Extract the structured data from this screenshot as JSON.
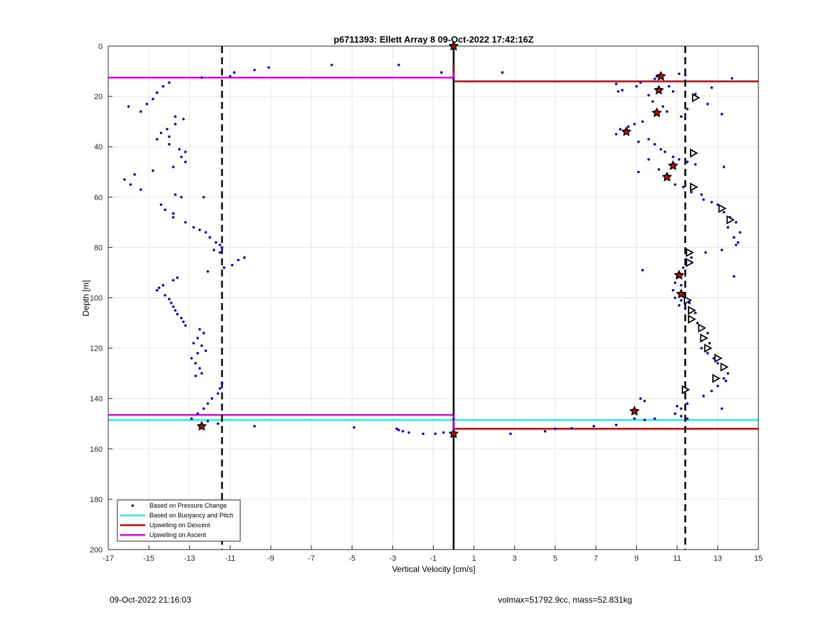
{
  "chart_data": {
    "type": "scatter",
    "title": "p6711393: Ellett Array 8 09-Oct-2022 17:42:16Z",
    "xlabel": "Vertical Velocity [cm/s]",
    "ylabel": "Depth [m]",
    "xlim": [
      -17,
      15
    ],
    "ylim": [
      0,
      200
    ],
    "y_reversed": true,
    "grid": true,
    "xticks": [
      -17,
      -15,
      -13,
      -11,
      -9,
      -7,
      -5,
      -3,
      -1,
      1,
      3,
      5,
      7,
      9,
      11,
      13,
      15
    ],
    "yticks": [
      0,
      20,
      40,
      60,
      80,
      100,
      120,
      140,
      160,
      180,
      200
    ],
    "legend_position": "bottom-left",
    "legend": [
      {
        "label": "Based on Pressure Change",
        "color": "#0000cc",
        "style": "marker"
      },
      {
        "label": "Based on Buoyancy and Pitch",
        "color": "#33e6e6",
        "style": "line"
      },
      {
        "label": "Upwelling on Descent",
        "color": "#cc0000",
        "style": "line"
      },
      {
        "label": "Upwelling on Ascent",
        "color": "#e600e6",
        "style": "line"
      }
    ],
    "vlines": [
      {
        "x": -11.4,
        "style": "dashed",
        "color": "#000000"
      },
      {
        "x": 11.4,
        "style": "dashed",
        "color": "#000000"
      },
      {
        "x": 0,
        "style": "solid",
        "color": "#000000",
        "y_range": [
          0,
          200
        ]
      }
    ],
    "hsegments": [
      {
        "series": "Upwelling on Ascent",
        "y": 12.5,
        "x_range": [
          -17,
          0
        ],
        "color": "#e600e6"
      },
      {
        "series": "Upwelling on Ascent",
        "y": 146.5,
        "x_range": [
          -17,
          0
        ],
        "color": "#e600e6"
      },
      {
        "series": "Upwelling on Descent",
        "y": 14,
        "x_range": [
          0,
          15
        ],
        "color": "#cc0000"
      },
      {
        "series": "Upwelling on Descent",
        "y": 152,
        "x_range": [
          0,
          15
        ],
        "color": "#cc0000"
      },
      {
        "series": "Based on Buoyancy and Pitch",
        "y": 148.5,
        "x_range": [
          -17,
          0
        ],
        "color": "#33e6e6"
      },
      {
        "series": "Based on Buoyancy and Pitch",
        "y": 148.5,
        "x_range": [
          0,
          15
        ],
        "color": "#33e6e6"
      }
    ],
    "series": [
      {
        "name": "Based on Pressure Change",
        "color": "#0000cc",
        "points": [
          [
            -14.0,
            14.5
          ],
          [
            -14.3,
            16.0
          ],
          [
            -14.6,
            18.5
          ],
          [
            -14.8,
            21
          ],
          [
            -15.1,
            23
          ],
          [
            -15.4,
            26
          ],
          [
            -16.0,
            24
          ],
          [
            -13.7,
            28
          ],
          [
            -13.3,
            29
          ],
          [
            -13.7,
            31
          ],
          [
            -14.1,
            33
          ],
          [
            -14.4,
            34.5
          ],
          [
            -14.0,
            36
          ],
          [
            -14.6,
            37
          ],
          [
            -14.0,
            39
          ],
          [
            -13.5,
            41
          ],
          [
            -13.2,
            42
          ],
          [
            -13.4,
            44
          ],
          [
            -13.2,
            46
          ],
          [
            -13.8,
            48
          ],
          [
            -14.8,
            49.5
          ],
          [
            -15.7,
            51
          ],
          [
            -16.2,
            53
          ],
          [
            -15.9,
            55
          ],
          [
            -15.4,
            57
          ],
          [
            -13.7,
            59
          ],
          [
            -13.4,
            60
          ],
          [
            -12.3,
            60
          ],
          [
            -14.4,
            63
          ],
          [
            -14.2,
            65
          ],
          [
            -13.8,
            66.5
          ],
          [
            -13.8,
            68
          ],
          [
            -13.2,
            70
          ],
          [
            -12.8,
            72
          ],
          [
            -12.5,
            73
          ],
          [
            -12.2,
            74
          ],
          [
            -12.0,
            76
          ],
          [
            -11.7,
            78
          ],
          [
            -11.5,
            79
          ],
          [
            -11.4,
            80
          ],
          [
            -11.8,
            81
          ],
          [
            -11.5,
            82
          ],
          [
            -10.3,
            84
          ],
          [
            -10.6,
            85
          ],
          [
            -10.9,
            87
          ],
          [
            -11.3,
            88
          ],
          [
            -12.1,
            89.5
          ],
          [
            -13.6,
            92
          ],
          [
            -13.8,
            93
          ],
          [
            -14.3,
            95
          ],
          [
            -14.5,
            96
          ],
          [
            -14.6,
            97
          ],
          [
            -14.2,
            99
          ],
          [
            -14.0,
            100.5
          ],
          [
            -13.9,
            102
          ],
          [
            -13.8,
            103.5
          ],
          [
            -13.7,
            105
          ],
          [
            -13.6,
            106.5
          ],
          [
            -13.4,
            108
          ],
          [
            -13.3,
            109.5
          ],
          [
            -13.2,
            111
          ],
          [
            -12.5,
            112.5
          ],
          [
            -12.3,
            114
          ],
          [
            -12.6,
            116
          ],
          [
            -12.8,
            118
          ],
          [
            -12.4,
            119
          ],
          [
            -12.2,
            121
          ],
          [
            -12.6,
            122
          ],
          [
            -12.9,
            124
          ],
          [
            -12.7,
            126
          ],
          [
            -12.5,
            128
          ],
          [
            -12.4,
            130
          ],
          [
            -12.7,
            131
          ],
          [
            -11.4,
            134
          ],
          [
            -11.5,
            136
          ],
          [
            -11.6,
            138
          ],
          [
            -11.9,
            140
          ],
          [
            -12.1,
            142
          ],
          [
            -12.3,
            144
          ],
          [
            -12.6,
            146
          ],
          [
            -12.9,
            148
          ],
          [
            -12.1,
            149
          ],
          [
            -11.6,
            150
          ],
          [
            -12.4,
            12.5
          ],
          [
            -11.0,
            12
          ],
          [
            -10.8,
            10.5
          ],
          [
            -9.8,
            9.5
          ],
          [
            -9.1,
            8.5
          ],
          [
            -6.0,
            7.5
          ],
          [
            -2.7,
            7.5
          ],
          [
            -0.6,
            10.5
          ],
          [
            2.4,
            10.5
          ],
          [
            -9.8,
            151
          ],
          [
            -4.9,
            151.5
          ],
          [
            -2.8,
            152
          ],
          [
            -2.7,
            152.5
          ],
          [
            -2.5,
            153
          ],
          [
            -2.2,
            153.5
          ],
          [
            -1.5,
            154
          ],
          [
            -0.9,
            154
          ],
          [
            -0.5,
            153.5
          ],
          [
            2.8,
            154
          ],
          [
            4.5,
            153
          ],
          [
            5.0,
            152
          ],
          [
            5.8,
            151.8
          ],
          [
            6.9,
            151
          ],
          [
            8.0,
            150.5
          ],
          [
            8.9,
            148
          ],
          [
            9.4,
            148.5
          ],
          [
            9.9,
            148
          ],
          [
            9.2,
            140
          ],
          [
            9.4,
            141
          ],
          [
            11.0,
            143
          ],
          [
            11.2,
            144
          ],
          [
            11.5,
            142
          ],
          [
            10.9,
            146
          ],
          [
            11.2,
            147
          ],
          [
            11.5,
            148
          ],
          [
            12.3,
            139
          ],
          [
            13.2,
            144
          ],
          [
            8.0,
            15
          ],
          [
            8.1,
            18
          ],
          [
            8.3,
            17.5
          ],
          [
            9.0,
            16
          ],
          [
            9.2,
            14.5
          ],
          [
            9.6,
            19.5
          ],
          [
            9.9,
            13
          ],
          [
            10.0,
            12
          ],
          [
            10.6,
            16
          ],
          [
            10.8,
            18
          ],
          [
            11.1,
            11
          ],
          [
            11.4,
            11.5
          ],
          [
            11.9,
            19
          ],
          [
            12.7,
            16.5
          ],
          [
            12.5,
            23
          ],
          [
            9.8,
            22
          ],
          [
            10.3,
            24
          ],
          [
            10.5,
            26
          ],
          [
            11.2,
            28
          ],
          [
            11.5,
            25
          ],
          [
            13.2,
            27
          ],
          [
            8.0,
            35
          ],
          [
            8.2,
            33
          ],
          [
            8.6,
            32
          ],
          [
            8.9,
            31
          ],
          [
            9.3,
            30
          ],
          [
            9.6,
            37
          ],
          [
            9.1,
            38
          ],
          [
            9.9,
            39
          ],
          [
            10.2,
            41
          ],
          [
            10.4,
            42
          ],
          [
            10.8,
            44
          ],
          [
            11.1,
            45
          ],
          [
            11.5,
            46
          ],
          [
            11.9,
            47
          ],
          [
            13.3,
            48
          ],
          [
            9.1,
            50
          ],
          [
            9.6,
            45
          ],
          [
            10.1,
            49
          ],
          [
            10.5,
            51
          ],
          [
            10.6,
            53
          ],
          [
            10.9,
            55
          ],
          [
            11.3,
            56
          ],
          [
            11.7,
            58
          ],
          [
            12.2,
            59
          ],
          [
            12.3,
            61
          ],
          [
            12.7,
            62
          ],
          [
            13.0,
            63
          ],
          [
            13.3,
            66
          ],
          [
            13.6,
            68
          ],
          [
            13.9,
            70
          ],
          [
            13.5,
            72
          ],
          [
            14.1,
            74
          ],
          [
            13.8,
            76
          ],
          [
            14.0,
            78
          ],
          [
            13.9,
            79
          ],
          [
            13.2,
            81
          ],
          [
            12.4,
            82
          ],
          [
            11.7,
            84
          ],
          [
            11.5,
            86
          ],
          [
            11.3,
            88
          ],
          [
            11.1,
            90
          ],
          [
            11.0,
            92
          ],
          [
            10.9,
            94
          ],
          [
            11.2,
            95
          ],
          [
            10.8,
            97
          ],
          [
            11.3,
            98.5
          ],
          [
            10.9,
            100
          ],
          [
            11.2,
            101
          ],
          [
            11.6,
            102
          ],
          [
            11.1,
            103
          ],
          [
            11.4,
            104
          ],
          [
            11.9,
            106
          ],
          [
            11.7,
            108
          ],
          [
            12.0,
            110
          ],
          [
            12.2,
            112
          ],
          [
            12.5,
            114
          ],
          [
            12.4,
            116
          ],
          [
            12.6,
            118
          ],
          [
            12.2,
            120
          ],
          [
            12.5,
            122
          ],
          [
            12.8,
            124
          ],
          [
            13.0,
            126
          ],
          [
            13.2,
            128
          ],
          [
            13.5,
            130
          ],
          [
            13.3,
            132
          ],
          [
            13.4,
            133
          ],
          [
            13.0,
            135
          ],
          [
            12.7,
            137
          ],
          [
            9.3,
            89
          ],
          [
            13.8,
            91.5
          ],
          [
            13.7,
            12.8
          ]
        ]
      },
      {
        "name": "Upwelling on Descent",
        "color": "#cc0000",
        "style": "star",
        "points": [
          [
            0,
            0
          ],
          [
            10.2,
            12
          ],
          [
            10.1,
            17.5
          ],
          [
            10.0,
            26.5
          ],
          [
            8.5,
            34
          ],
          [
            10.8,
            47.5
          ],
          [
            10.5,
            52
          ],
          [
            11.1,
            91
          ],
          [
            11.2,
            98.5
          ],
          [
            8.9,
            145
          ],
          [
            -12.4,
            151
          ],
          [
            0,
            154
          ]
        ]
      },
      {
        "name": "Upwelling on Ascent",
        "color": "#000000",
        "style": "triangle",
        "points": [
          [
            11.9,
            20.5
          ],
          [
            11.8,
            42.5
          ],
          [
            11.8,
            56
          ],
          [
            13.2,
            64.5
          ],
          [
            13.6,
            69
          ],
          [
            11.6,
            82
          ],
          [
            11.6,
            86
          ],
          [
            11.5,
            101
          ],
          [
            11.7,
            105
          ],
          [
            11.7,
            108.5
          ],
          [
            12.2,
            112
          ],
          [
            12.3,
            116
          ],
          [
            12.5,
            120
          ],
          [
            13.0,
            124
          ],
          [
            13.3,
            127.5
          ],
          [
            12.9,
            132
          ],
          [
            11.4,
            136.5
          ]
        ]
      }
    ]
  },
  "footer": {
    "left": "09-Oct-2022 21:16:03",
    "right": "volmax=51792.9cc, mass=52.831kg"
  }
}
